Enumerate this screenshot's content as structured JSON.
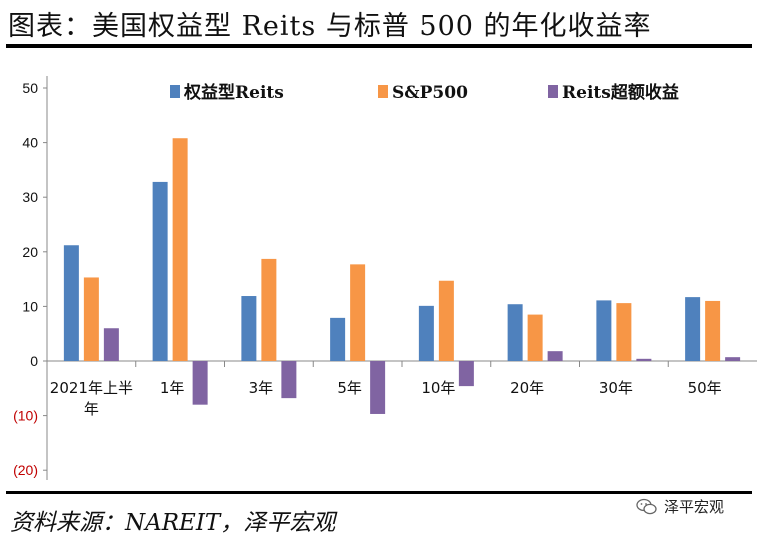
{
  "header": {
    "title": "图表：美国权益型 Reits 与标普 500 的年化收益率"
  },
  "footer": {
    "source": "资料来源：NAREIT，泽平宏观",
    "watermark": "泽平宏观"
  },
  "colors": {
    "blue": "#4f81bd",
    "orange": "#f79646",
    "purple": "#8064a2",
    "red_tick": "#c00000"
  },
  "chart_data": {
    "type": "bar",
    "categories": [
      "2021年上半年",
      "1年",
      "3年",
      "5年",
      "10年",
      "20年",
      "30年",
      "50年"
    ],
    "series": [
      {
        "name": "权益型Reits",
        "values": [
          21.2,
          32.8,
          11.9,
          7.9,
          10.1,
          10.4,
          11.1,
          11.7
        ]
      },
      {
        "name": "S&P500",
        "values": [
          15.3,
          40.8,
          18.7,
          17.7,
          14.7,
          8.5,
          10.6,
          11.0
        ]
      },
      {
        "name": "Reits超额收益",
        "values": [
          6.0,
          -8.0,
          -6.8,
          -9.7,
          -4.6,
          1.8,
          0.4,
          0.7
        ]
      }
    ],
    "ylim": [
      -20,
      50
    ],
    "yticks": [
      "50",
      "40",
      "30",
      "20",
      "10",
      "0",
      "(10)",
      "(20)"
    ],
    "ytick_values": [
      50,
      40,
      30,
      20,
      10,
      0,
      -10,
      -20
    ],
    "legend": "top",
    "grid": false,
    "xlabel": "",
    "ylabel": ""
  }
}
